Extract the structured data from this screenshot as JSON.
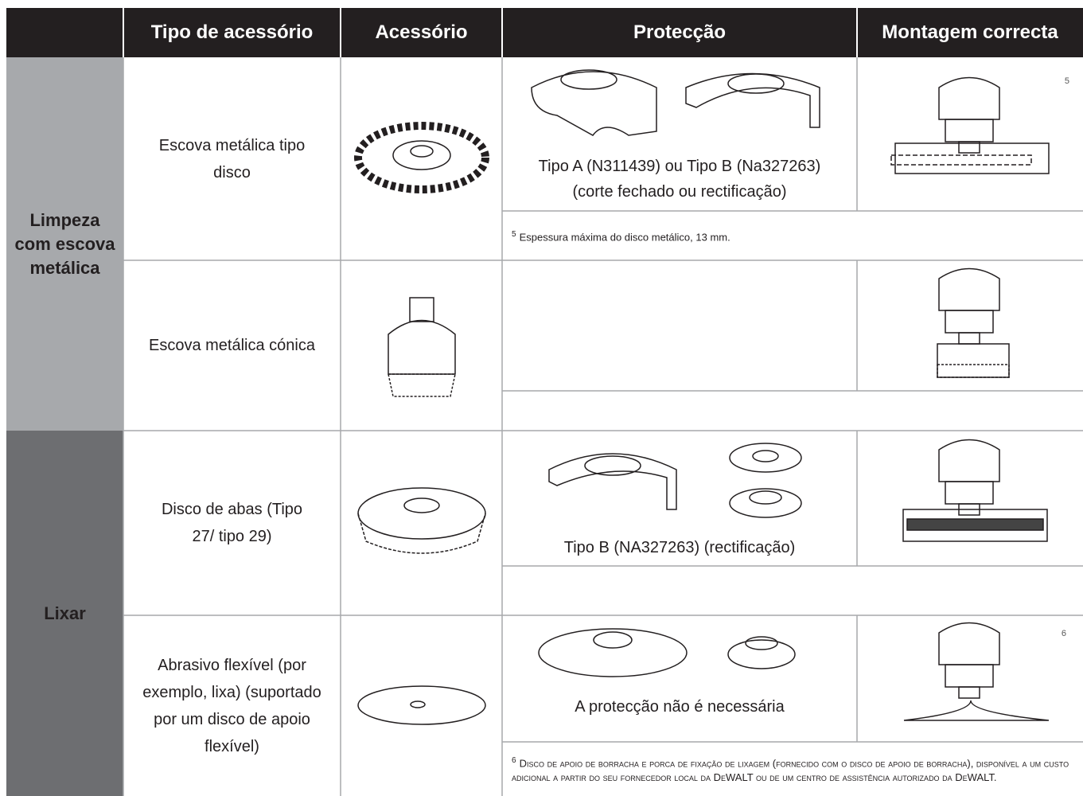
{
  "header": {
    "columns": [
      "Tipo de acessório",
      "Acessório",
      "Protecção",
      "Montagem correcta"
    ]
  },
  "groups": [
    {
      "label": "Limpeza com escova metálica",
      "rows": [
        {
          "type": "Escova metálica tipo disco",
          "protection": "Tipo A (N311439) ou Tipo B (Na327263)(corte fechado ou rectificação)",
          "mount_note": "5",
          "footnote": {
            "marker": "5",
            "text": "Espessura máxima do disco metálico, 13 mm."
          }
        },
        {
          "type": "Escova metálica cónica"
        }
      ]
    },
    {
      "label": "Lixar",
      "rows": [
        {
          "type": "Disco de abas (Tipo 27/ tipo 29)",
          "protection": "Tipo B (NA327263) (rectificação)"
        },
        {
          "type": "Abrasivo flexível (por exemplo, lixa) (suportado por um disco de apoio flexível)",
          "protection": "A protecção não é necessária",
          "mount_note": "6",
          "footnote": {
            "marker": "6",
            "text": "Disco de apoio de borracha e porca de fixação de lixagem (fornecido com o disco de apoio de borracha), disponível a um custo adicional a partir do seu fornecedor local da DeWALT ou de um centro de assistência autorizado da DeWALT."
          }
        }
      ]
    }
  ]
}
